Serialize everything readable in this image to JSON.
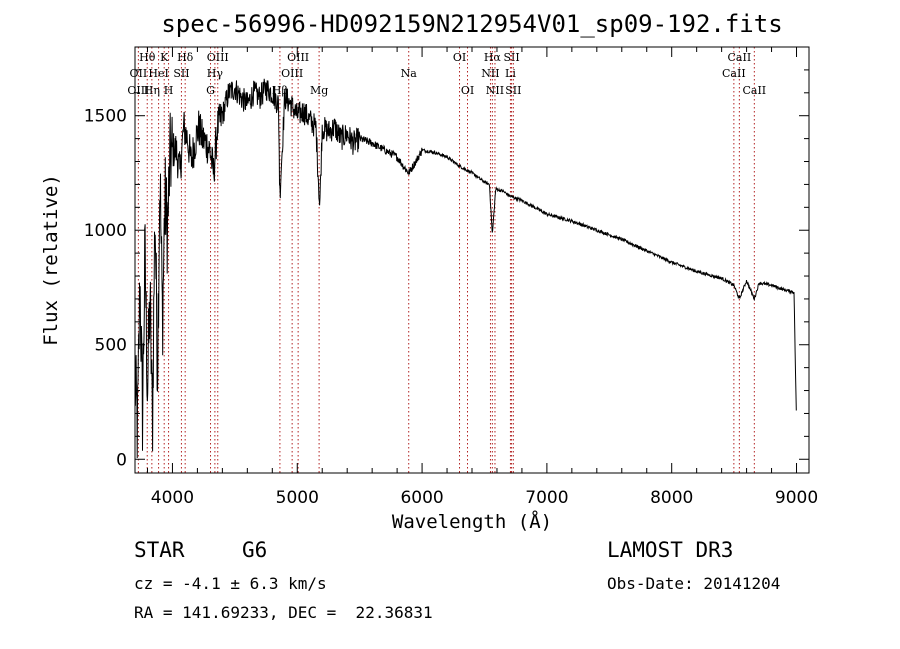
{
  "chart_data": {
    "type": "line",
    "title": "spec-56996-HD092159N212954V01_sp09-192.fits",
    "xlabel": "Wavelength (Å)",
    "ylabel": "Flux (relative)",
    "xlim": [
      3700,
      9100
    ],
    "ylim": [
      -60,
      1800
    ],
    "xticks": [
      4000,
      5000,
      6000,
      7000,
      8000,
      9000
    ],
    "yticks": [
      0,
      500,
      1000,
      1500
    ],
    "spectrum": {
      "x": [
        3700,
        3720,
        3740,
        3760,
        3780,
        3800,
        3820,
        3840,
        3860,
        3880,
        3900,
        3920,
        3940,
        3960,
        3980,
        4000,
        4030,
        4060,
        4090,
        4120,
        4150,
        4180,
        4210,
        4240,
        4270,
        4300,
        4330,
        4360,
        4400,
        4450,
        4500,
        4550,
        4600,
        4650,
        4700,
        4750,
        4800,
        4850,
        4860,
        4900,
        4950,
        5000,
        5050,
        5100,
        5150,
        5180,
        5200,
        5250,
        5300,
        5350,
        5400,
        5450,
        5500,
        5600,
        5700,
        5800,
        5850,
        5893,
        5950,
        6000,
        6100,
        6200,
        6300,
        6400,
        6500,
        6540,
        6563,
        6590,
        6650,
        6700,
        6800,
        6900,
        7000,
        7200,
        7400,
        7600,
        7800,
        8000,
        8200,
        8400,
        8498,
        8542,
        8600,
        8662,
        8700,
        8800,
        8900,
        8980,
        9000
      ],
      "y": [
        350,
        120,
        780,
        200,
        900,
        300,
        700,
        150,
        1100,
        400,
        1250,
        600,
        1150,
        1000,
        1300,
        1350,
        1350,
        1250,
        1450,
        1400,
        1300,
        1380,
        1450,
        1400,
        1380,
        1350,
        1250,
        1450,
        1500,
        1600,
        1620,
        1580,
        1550,
        1600,
        1580,
        1620,
        1600,
        1550,
        1150,
        1580,
        1550,
        1500,
        1520,
        1480,
        1450,
        1100,
        1450,
        1430,
        1450,
        1400,
        1420,
        1380,
        1400,
        1380,
        1350,
        1320,
        1280,
        1250,
        1300,
        1350,
        1340,
        1320,
        1280,
        1250,
        1210,
        1200,
        980,
        1180,
        1170,
        1150,
        1130,
        1100,
        1070,
        1040,
        1000,
        960,
        910,
        860,
        820,
        790,
        760,
        700,
        780,
        700,
        770,
        760,
        740,
        730,
        150
      ]
    },
    "lines": [
      {
        "name": "Hθ",
        "wavelength": 3798,
        "row": 1
      },
      {
        "name": "OII",
        "wavelength": 3727,
        "row": 2
      },
      {
        "name": "OIII",
        "wavelength": 3727,
        "row": 3
      },
      {
        "name": "K",
        "wavelength": 3934,
        "row": 1
      },
      {
        "name": "HeI",
        "wavelength": 3889,
        "row": 2
      },
      {
        "name": "Hη",
        "wavelength": 3835,
        "row": 3
      },
      {
        "name": "H",
        "wavelength": 3969,
        "row": 3
      },
      {
        "name": "Hδ",
        "wavelength": 4102,
        "row": 1
      },
      {
        "name": "SII",
        "wavelength": 4072,
        "row": 2
      },
      {
        "name": "OIII",
        "wavelength": 4363,
        "row": 1
      },
      {
        "name": "Hγ",
        "wavelength": 4340,
        "row": 2
      },
      {
        "name": "G",
        "wavelength": 4305,
        "row": 3
      },
      {
        "name": "Hβ",
        "wavelength": 4861,
        "row": 3
      },
      {
        "name": "OIII",
        "wavelength": 4959,
        "row": 2
      },
      {
        "name": "OIII",
        "wavelength": 5007,
        "row": 1
      },
      {
        "name": "Mg",
        "wavelength": 5175,
        "row": 3
      },
      {
        "name": "Na",
        "wavelength": 5893,
        "row": 2
      },
      {
        "name": "OI",
        "wavelength": 6300,
        "row": 1
      },
      {
        "name": "OI",
        "wavelength": 6364,
        "row": 3
      },
      {
        "name": "Hα",
        "wavelength": 6563,
        "row": 1
      },
      {
        "name": "NII",
        "wavelength": 6548,
        "row": 2
      },
      {
        "name": "NII",
        "wavelength": 6584,
        "row": 3
      },
      {
        "name": "SII",
        "wavelength": 6717,
        "row": 1
      },
      {
        "name": "Li",
        "wavelength": 6708,
        "row": 2
      },
      {
        "name": "SII",
        "wavelength": 6731,
        "row": 3
      },
      {
        "name": "CaII",
        "wavelength": 8542,
        "row": 1
      },
      {
        "name": "CaII",
        "wavelength": 8498,
        "row": 2
      },
      {
        "name": "CaII",
        "wavelength": 8662,
        "row": 3
      }
    ]
  },
  "info": {
    "object_type": "STAR",
    "subclass": "G6",
    "survey": "LAMOST DR3",
    "cz": "cz = -4.1 ± 6.3 km/s",
    "obs_date": "Obs-Date: 20141204",
    "coords": "RA = 141.69233, DEC =  22.36831"
  }
}
